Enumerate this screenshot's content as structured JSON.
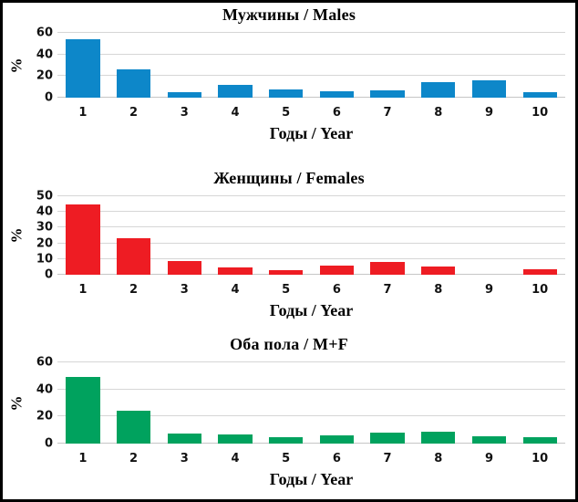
{
  "figure": {
    "kind": "three-stacked-bar-charts",
    "frame_color": "#000000",
    "background": "#ffffff",
    "gridline_color": "#d6d6d6"
  },
  "chart_data": [
    {
      "type": "bar",
      "title": "Мужчины / Males",
      "xlabel": "Годы / Year",
      "ylabel": "%",
      "categories": [
        "1",
        "2",
        "3",
        "4",
        "5",
        "6",
        "7",
        "8",
        "9",
        "10"
      ],
      "values": [
        54,
        26,
        5,
        12,
        8,
        6,
        6.5,
        14,
        16,
        5
      ],
      "yticks": [
        0,
        20,
        40,
        60
      ],
      "ylim": [
        0,
        60
      ],
      "grid": true,
      "legend": "none",
      "color": "#0d87c9"
    },
    {
      "type": "bar",
      "title": "Женщины / Females",
      "xlabel": "Годы / Year",
      "ylabel": "%",
      "categories": [
        "1",
        "2",
        "3",
        "4",
        "5",
        "6",
        "7",
        "8",
        "9",
        "10"
      ],
      "values": [
        45,
        23,
        9,
        4.5,
        3,
        6,
        8,
        5.5,
        0,
        3.5
      ],
      "yticks": [
        0,
        10,
        20,
        30,
        40,
        50
      ],
      "ylim": [
        0,
        50
      ],
      "grid": true,
      "legend": "none",
      "color": "#ee1c23"
    },
    {
      "type": "bar",
      "title": "Оба пола / M+F",
      "xlabel": "Годы / Year",
      "ylabel": "%",
      "categories": [
        "1",
        "2",
        "3",
        "4",
        "5",
        "6",
        "7",
        "8",
        "9",
        "10"
      ],
      "values": [
        49,
        24.5,
        7.5,
        7,
        5,
        6,
        8,
        8.5,
        5.5,
        4.5
      ],
      "yticks": [
        0,
        20,
        40,
        60
      ],
      "ylim": [
        0,
        60
      ],
      "grid": true,
      "legend": "none",
      "color": "#00a25e"
    }
  ]
}
